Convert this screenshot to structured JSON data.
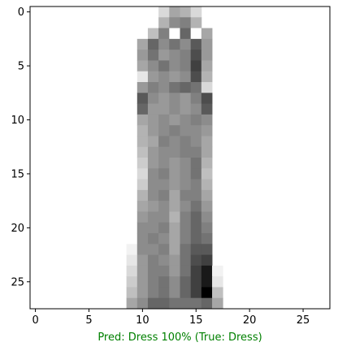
{
  "chart_data": {
    "type": "heatmap",
    "title": "",
    "xlabel": "Pred: Dress 100% (True: Dress)",
    "xlabel_color": "#008000",
    "ylabel": "",
    "colormap": "gray_r",
    "xlim": [
      -0.5,
      27.5
    ],
    "ylim": [
      27.5,
      -0.5
    ],
    "x_ticks": [
      0,
      5,
      10,
      15,
      20,
      25
    ],
    "y_ticks": [
      0,
      5,
      10,
      15,
      20,
      25
    ],
    "grid": false,
    "image_rows": 28,
    "image_cols": 28,
    "pixel_rows": [
      {
        "row": 0,
        "start": 12,
        "values": [
          0.15,
          0.35,
          0.3,
          0.15
        ]
      },
      {
        "row": 1,
        "start": 12,
        "values": [
          0.3,
          0.45,
          0.5,
          0.3
        ]
      },
      {
        "row": 2,
        "start": 11,
        "values": [
          0.25,
          0.5,
          0.0,
          0.6,
          0.0,
          0.35
        ]
      },
      {
        "row": 3,
        "start": 10,
        "values": [
          0.35,
          0.6,
          0.45,
          0.55,
          0.45,
          0.65,
          0.4
        ]
      },
      {
        "row": 4,
        "start": 10,
        "values": [
          0.4,
          0.55,
          0.4,
          0.45,
          0.5,
          0.7,
          0.4
        ]
      },
      {
        "row": 5,
        "start": 10,
        "values": [
          0.35,
          0.45,
          0.55,
          0.45,
          0.5,
          0.75,
          0.35
        ]
      },
      {
        "row": 6,
        "start": 10,
        "values": [
          0.1,
          0.4,
          0.45,
          0.4,
          0.45,
          0.7,
          0.3
        ]
      },
      {
        "row": 7,
        "start": 10,
        "values": [
          0.4,
          0.5,
          0.45,
          0.55,
          0.6,
          0.55,
          0.15
        ]
      },
      {
        "row": 8,
        "start": 10,
        "values": [
          0.65,
          0.45,
          0.4,
          0.45,
          0.4,
          0.5,
          0.7
        ]
      },
      {
        "row": 9,
        "start": 10,
        "values": [
          0.6,
          0.4,
          0.4,
          0.45,
          0.4,
          0.45,
          0.65
        ]
      },
      {
        "row": 10,
        "start": 10,
        "values": [
          0.35,
          0.4,
          0.45,
          0.4,
          0.45,
          0.5,
          0.45
        ]
      },
      {
        "row": 11,
        "start": 10,
        "values": [
          0.3,
          0.4,
          0.45,
          0.5,
          0.45,
          0.45,
          0.4
        ]
      },
      {
        "row": 12,
        "start": 10,
        "values": [
          0.3,
          0.35,
          0.5,
          0.45,
          0.5,
          0.45,
          0.35
        ]
      },
      {
        "row": 13,
        "start": 10,
        "values": [
          0.25,
          0.4,
          0.45,
          0.45,
          0.5,
          0.5,
          0.35
        ]
      },
      {
        "row": 14,
        "start": 10,
        "values": [
          0.2,
          0.4,
          0.45,
          0.4,
          0.45,
          0.55,
          0.3
        ]
      },
      {
        "row": 15,
        "start": 10,
        "values": [
          0.15,
          0.45,
          0.5,
          0.4,
          0.45,
          0.55,
          0.25
        ]
      },
      {
        "row": 16,
        "start": 10,
        "values": [
          0.2,
          0.45,
          0.45,
          0.4,
          0.45,
          0.5,
          0.3
        ]
      },
      {
        "row": 17,
        "start": 10,
        "values": [
          0.3,
          0.45,
          0.5,
          0.35,
          0.5,
          0.5,
          0.35
        ]
      },
      {
        "row": 18,
        "start": 10,
        "values": [
          0.35,
          0.4,
          0.45,
          0.35,
          0.45,
          0.55,
          0.4
        ]
      },
      {
        "row": 19,
        "start": 10,
        "values": [
          0.4,
          0.45,
          0.45,
          0.3,
          0.5,
          0.6,
          0.45
        ]
      },
      {
        "row": 20,
        "start": 10,
        "values": [
          0.45,
          0.45,
          0.5,
          0.35,
          0.5,
          0.6,
          0.5
        ]
      },
      {
        "row": 21,
        "start": 10,
        "values": [
          0.45,
          0.5,
          0.45,
          0.35,
          0.5,
          0.6,
          0.55
        ]
      },
      {
        "row": 22,
        "start": 9,
        "values": [
          0.05,
          0.45,
          0.45,
          0.5,
          0.35,
          0.55,
          0.65,
          0.65
        ]
      },
      {
        "row": 23,
        "start": 9,
        "values": [
          0.1,
          0.4,
          0.5,
          0.45,
          0.4,
          0.55,
          0.7,
          0.75
        ]
      },
      {
        "row": 24,
        "start": 9,
        "values": [
          0.15,
          0.4,
          0.5,
          0.5,
          0.4,
          0.55,
          0.75,
          0.9,
          0.05
        ]
      },
      {
        "row": 25,
        "start": 9,
        "values": [
          0.2,
          0.4,
          0.5,
          0.55,
          0.45,
          0.6,
          0.75,
          0.9,
          0.1
        ]
      },
      {
        "row": 26,
        "start": 9,
        "values": [
          0.25,
          0.4,
          0.5,
          0.55,
          0.45,
          0.6,
          0.75,
          1.0,
          0.25
        ]
      },
      {
        "row": 27,
        "start": 9,
        "values": [
          0.35,
          0.45,
          0.6,
          0.6,
          0.55,
          0.55,
          0.55,
          0.6,
          0.35
        ]
      }
    ]
  }
}
